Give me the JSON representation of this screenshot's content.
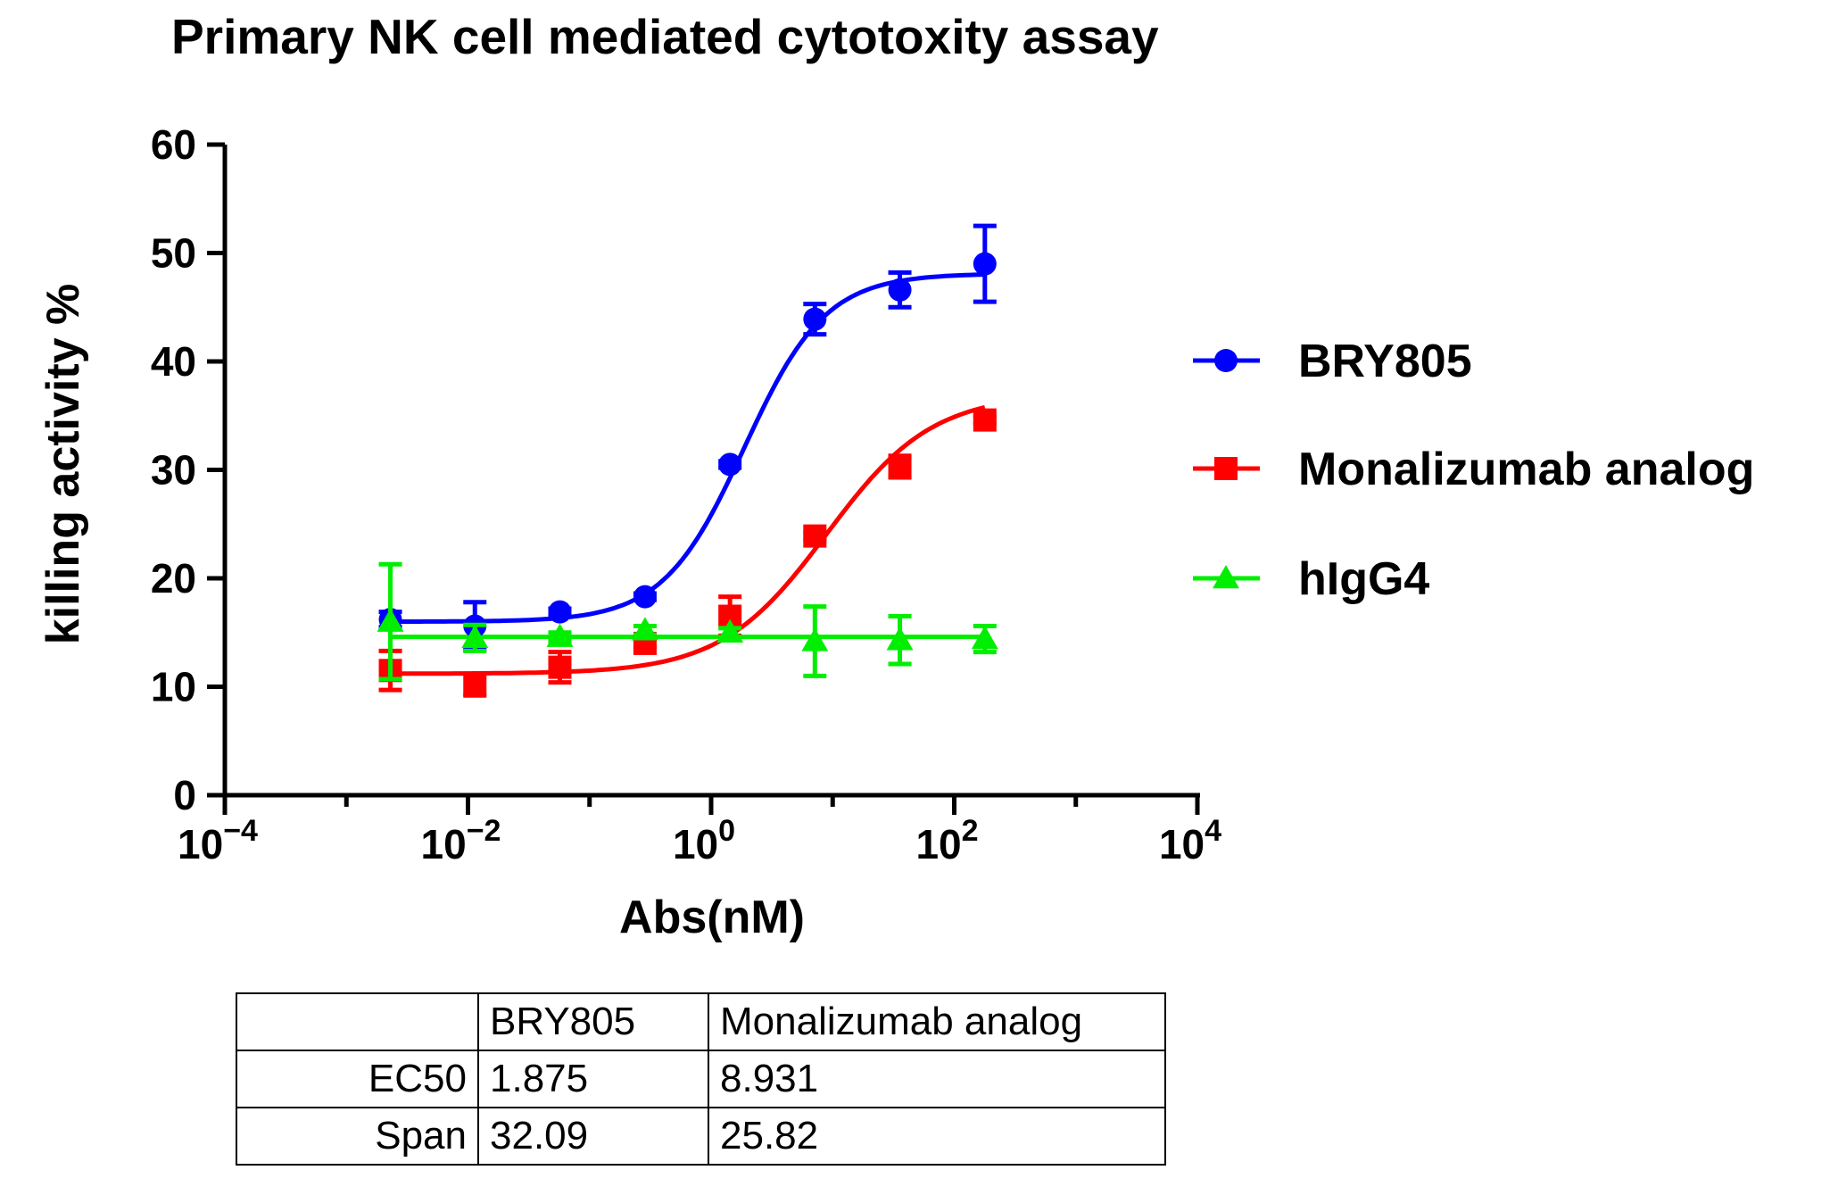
{
  "chart_data": {
    "type": "scatter",
    "title": "Primary NK cell mediated cytotoxity assay",
    "xlabel": "Abs(nM)",
    "ylabel": "killing activity %",
    "xscale": "log10",
    "xlim": [
      0.0001,
      10000
    ],
    "ylim": [
      0,
      60
    ],
    "xticks": [
      {
        "base": "10",
        "exp": "−4"
      },
      {
        "base": "10",
        "exp": "−2"
      },
      {
        "base": "10",
        "exp": "0"
      },
      {
        "base": "10",
        "exp": "2"
      },
      {
        "base": "10",
        "exp": "4"
      }
    ],
    "yticks": [
      "0",
      "10",
      "20",
      "30",
      "40",
      "50",
      "60"
    ],
    "legend_position": "right",
    "series": [
      {
        "name": "BRY805",
        "color": "#0000ff",
        "marker": "circle",
        "x": [
          0.0023,
          0.0114,
          0.057,
          0.286,
          1.43,
          7.14,
          35.7,
          178.6
        ],
        "y": [
          16.2,
          15.6,
          16.9,
          18.3,
          30.5,
          43.9,
          46.6,
          49.0
        ],
        "err": [
          0.7,
          2.2,
          0.3,
          0.3,
          0.3,
          1.4,
          1.6,
          3.5
        ],
        "fit": {
          "bottom": 16.0,
          "top": 48.1,
          "ec50": 1.875,
          "hill": 1.3
        }
      },
      {
        "name": "Monalizumab analog",
        "color": "#ff0000",
        "marker": "square",
        "x": [
          0.0023,
          0.0114,
          0.057,
          0.286,
          1.43,
          7.14,
          35.7,
          178.6
        ],
        "y": [
          11.5,
          10.2,
          11.8,
          14.0,
          16.5,
          23.9,
          30.3,
          34.6
        ],
        "err": [
          1.8,
          1.0,
          1.4,
          0.3,
          1.8,
          0.3,
          1.0,
          0.3
        ],
        "fit": {
          "bottom": 11.2,
          "top": 37.0,
          "ec50": 8.931,
          "hill": 1.0
        }
      },
      {
        "name": "hIgG4",
        "color": "#00ee00",
        "marker": "triangle",
        "x": [
          0.0023,
          0.0114,
          0.057,
          0.286,
          1.43,
          7.14,
          35.7,
          178.6
        ],
        "y": [
          16.0,
          14.5,
          14.6,
          15.2,
          15.0,
          14.2,
          14.3,
          14.4
        ],
        "err": [
          5.3,
          1.2,
          0.4,
          0.4,
          0.4,
          3.2,
          2.2,
          1.2
        ],
        "fit": {
          "constant": 14.6
        }
      }
    ]
  },
  "table": {
    "header": [
      "",
      "BRY805",
      "Monalizumab analog"
    ],
    "rows": [
      [
        "EC50",
        "1.875",
        "8.931"
      ],
      [
        "Span",
        "32.09",
        "25.82"
      ]
    ]
  }
}
